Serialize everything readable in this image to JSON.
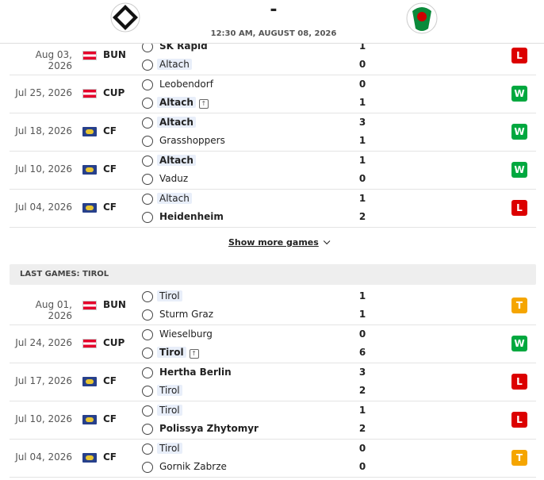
{
  "header": {
    "score": "-",
    "time": "12:30 AM, AUGUST 08, 2026"
  },
  "sections": [
    {
      "matches": [
        {
          "date": "Aug 03, 2026",
          "competition": "BUN",
          "flag": "austria",
          "home": {
            "name": "SK Rapid",
            "score": 1,
            "bold": true,
            "focus": false,
            "advanced": false
          },
          "away": {
            "name": "Altach",
            "score": 0,
            "bold": false,
            "focus": true,
            "advanced": false
          },
          "result": "L",
          "result_color": "#dc0000"
        },
        {
          "date": "Jul 25, 2026",
          "competition": "CUP",
          "flag": "austria",
          "home": {
            "name": "Leobendorf",
            "score": 0,
            "bold": false,
            "focus": false,
            "advanced": false
          },
          "away": {
            "name": "Altach",
            "score": 1,
            "bold": true,
            "focus": true,
            "advanced": true
          },
          "result": "W",
          "result_color": "#00a83f"
        },
        {
          "date": "Jul 18, 2026",
          "competition": "CF",
          "flag": "world",
          "home": {
            "name": "Altach",
            "score": 3,
            "bold": true,
            "focus": true,
            "advanced": false
          },
          "away": {
            "name": "Grasshoppers",
            "score": 1,
            "bold": false,
            "focus": false,
            "advanced": false
          },
          "result": "W",
          "result_color": "#00a83f"
        },
        {
          "date": "Jul 10, 2026",
          "competition": "CF",
          "flag": "world",
          "home": {
            "name": "Altach",
            "score": 1,
            "bold": true,
            "focus": true,
            "advanced": false
          },
          "away": {
            "name": "Vaduz",
            "score": 0,
            "bold": false,
            "focus": false,
            "advanced": false
          },
          "result": "W",
          "result_color": "#00a83f"
        },
        {
          "date": "Jul 04, 2026",
          "competition": "CF",
          "flag": "world",
          "home": {
            "name": "Altach",
            "score": 1,
            "bold": false,
            "focus": true,
            "advanced": false
          },
          "away": {
            "name": "Heidenheim",
            "score": 2,
            "bold": true,
            "focus": false,
            "advanced": false
          },
          "result": "L",
          "result_color": "#dc0000"
        }
      ],
      "show_more": "Show more games"
    },
    {
      "title": "LAST GAMES: TIROL",
      "matches": [
        {
          "date": "Aug 01, 2026",
          "competition": "BUN",
          "flag": "austria",
          "home": {
            "name": "Tirol",
            "score": 1,
            "bold": false,
            "focus": true,
            "advanced": false
          },
          "away": {
            "name": "Sturm Graz",
            "score": 1,
            "bold": false,
            "focus": false,
            "advanced": false
          },
          "result": "T",
          "result_color": "#f5a500"
        },
        {
          "date": "Jul 24, 2026",
          "competition": "CUP",
          "flag": "austria",
          "home": {
            "name": "Wieselburg",
            "score": 0,
            "bold": false,
            "focus": false,
            "advanced": false
          },
          "away": {
            "name": "Tirol",
            "score": 6,
            "bold": true,
            "focus": true,
            "advanced": true
          },
          "result": "W",
          "result_color": "#00a83f"
        },
        {
          "date": "Jul 17, 2026",
          "competition": "CF",
          "flag": "world",
          "home": {
            "name": "Hertha Berlin",
            "score": 3,
            "bold": true,
            "focus": false,
            "advanced": false
          },
          "away": {
            "name": "Tirol",
            "score": 2,
            "bold": false,
            "focus": true,
            "advanced": false
          },
          "result": "L",
          "result_color": "#dc0000"
        },
        {
          "date": "Jul 10, 2026",
          "competition": "CF",
          "flag": "world",
          "home": {
            "name": "Tirol",
            "score": 1,
            "bold": false,
            "focus": true,
            "advanced": false
          },
          "away": {
            "name": "Polissya Zhytomyr",
            "score": 2,
            "bold": true,
            "focus": false,
            "advanced": false
          },
          "result": "L",
          "result_color": "#dc0000"
        },
        {
          "date": "Jul 04, 2026",
          "competition": "CF",
          "flag": "world",
          "home": {
            "name": "Tirol",
            "score": 0,
            "bold": false,
            "focus": true,
            "advanced": false
          },
          "away": {
            "name": "Gornik Zabrze",
            "score": 0,
            "bold": false,
            "focus": false,
            "advanced": false
          },
          "result": "T",
          "result_color": "#f5a500"
        }
      ]
    }
  ]
}
